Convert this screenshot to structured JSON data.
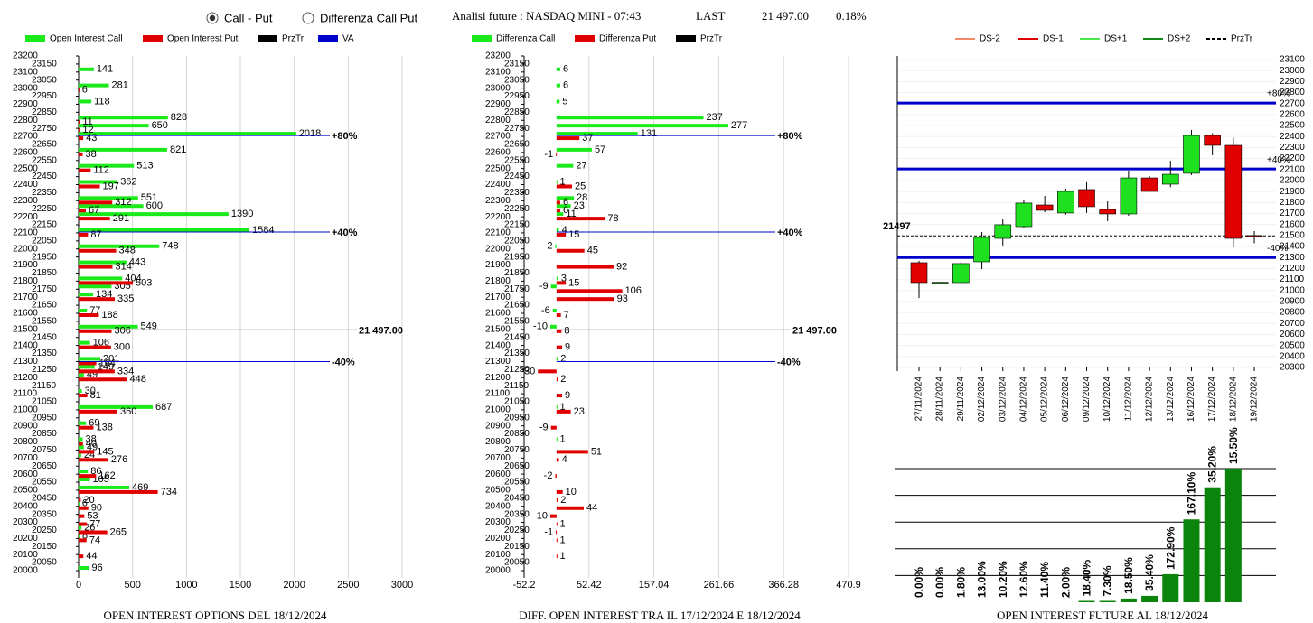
{
  "header": {
    "radio": [
      {
        "label": "Call - Put",
        "selected": true
      },
      {
        "label": "Differenza Call Put",
        "selected": false
      }
    ],
    "title": "Analisi future : NASDAQ MINI - 07:43",
    "last_label": "LAST",
    "last": "21 497.00",
    "change": "0.18%"
  },
  "chart_data": [
    {
      "type": "hbar",
      "title": "OPEN INTEREST OPTIONS DEL 18/12/2024",
      "strikes": [
        23100,
        23000,
        22900,
        22800,
        22750,
        22700,
        22600,
        22500,
        22400,
        22300,
        22250,
        22200,
        22100,
        22000,
        21900,
        21800,
        21750,
        21700,
        21600,
        21500,
        21400,
        21300,
        21250,
        21200,
        21100,
        21000,
        20900,
        20800,
        20750,
        20700,
        20600,
        20550,
        20500,
        20450,
        20400,
        20350,
        20300,
        20250,
        20200,
        20100,
        20000
      ],
      "series": [
        {
          "name": "Open Interest Call",
          "color": "#1aea1a",
          "values": [
            141,
            281,
            118,
            828,
            650,
            2018,
            821,
            513,
            362,
            551,
            600,
            1390,
            1584,
            748,
            443,
            404,
            305,
            134,
            77,
            549,
            106,
            201,
            149,
            49,
            30,
            687,
            69,
            38,
            49,
            24,
            86,
            105,
            469,
            null,
            6,
            null,
            null,
            26,
            8,
            null,
            96
          ]
        },
        {
          "name": "Open Interest Put",
          "color": "#e00000",
          "values": [
            null,
            6,
            null,
            11,
            12,
            43,
            38,
            112,
            197,
            312,
            67,
            291,
            87,
            348,
            314,
            503,
            null,
            335,
            188,
            306,
            300,
            164,
            334,
            448,
            81,
            360,
            138,
            40,
            145,
            276,
            162,
            null,
            734,
            20,
            90,
            53,
            77,
            265,
            74,
            44,
            null
          ]
        }
      ],
      "lines": [
        {
          "name": "PrzTr",
          "color": "#000000",
          "marks": [
            {
              "value": 21497,
              "label": "21 497.00"
            }
          ]
        },
        {
          "name": "VA",
          "color": "#0000cc",
          "marks": [
            {
              "value": 22705,
              "label": "+80%"
            },
            {
              "value": 22105,
              "label": "+40%"
            },
            {
              "value": 21300,
              "label": "-40%"
            }
          ]
        }
      ],
      "xlim": [
        0,
        3000
      ],
      "xticks": [
        0,
        500,
        1000,
        1500,
        2000,
        2500,
        3000
      ],
      "ylim": [
        20000,
        23200
      ],
      "yticks": [
        20000,
        20050,
        20100,
        20150,
        20200,
        20250,
        20300,
        20350,
        20400,
        20450,
        20500,
        20550,
        20600,
        20650,
        20700,
        20750,
        20800,
        20850,
        20900,
        20950,
        21000,
        21050,
        21100,
        21150,
        21200,
        21250,
        21300,
        21350,
        21400,
        21450,
        21500,
        21550,
        21600,
        21650,
        21700,
        21750,
        21800,
        21850,
        21900,
        21950,
        22000,
        22050,
        22100,
        22150,
        22200,
        22250,
        22300,
        22350,
        22400,
        22450,
        22500,
        22550,
        22600,
        22650,
        22700,
        22750,
        22800,
        22850,
        22900,
        22950,
        23000,
        23050,
        23100,
        23150,
        23200
      ],
      "grid": true
    },
    {
      "type": "hbar",
      "title": "DIFF. OPEN INTEREST TRA IL 17/12/2024 E 18/12/2024",
      "strikes": [
        23100,
        23000,
        22900,
        22800,
        22750,
        22700,
        22600,
        22500,
        22400,
        22300,
        22250,
        22200,
        22100,
        22000,
        21900,
        21800,
        21750,
        21700,
        21600,
        21500,
        21400,
        21300,
        21250,
        21200,
        21100,
        21000,
        20900,
        20800,
        20750,
        20700,
        20600,
        20500,
        20450,
        20400,
        20350,
        20300,
        20250,
        20200,
        20100
      ],
      "series": [
        {
          "name": "Differenza Call",
          "color": "#1aea1a",
          "values": [
            6,
            6,
            5,
            237,
            277,
            131,
            57,
            27,
            1,
            28,
            23,
            11,
            4,
            -2,
            null,
            3,
            -9,
            null,
            -6,
            -10,
            null,
            2,
            null,
            null,
            null,
            1,
            null,
            1,
            null,
            null,
            null,
            null,
            null,
            null,
            null,
            null,
            null,
            null,
            null
          ]
        },
        {
          "name": "Differenza Put",
          "color": "#e00000",
          "values": [
            null,
            null,
            null,
            null,
            null,
            37,
            -1,
            null,
            25,
            6,
            6,
            78,
            15,
            45,
            92,
            15,
            106,
            93,
            7,
            8,
            9,
            null,
            -30,
            2,
            9,
            23,
            -9,
            null,
            51,
            4,
            -2,
            10,
            2,
            44,
            -10,
            1,
            -1,
            1,
            1
          ]
        }
      ],
      "lines": [
        {
          "name": "PrzTr",
          "color": "#000000",
          "marks": [
            {
              "value": 21497,
              "label": "21 497.00"
            }
          ]
        },
        {
          "color": "#0000cc",
          "marks": [
            {
              "value": 22705,
              "label": "+80%"
            },
            {
              "value": 22105,
              "label": "+40%"
            },
            {
              "value": 21300,
              "label": "-40%"
            }
          ]
        }
      ],
      "xlim": [
        -52.2,
        470.9
      ],
      "xticks": [
        -52.2,
        52.42,
        157.04,
        261.66,
        366.28,
        470.9
      ],
      "ylim": [
        20000,
        23200
      ],
      "yticks": [
        20000,
        20050,
        20100,
        20150,
        20200,
        20250,
        20300,
        20350,
        20400,
        20450,
        20500,
        20550,
        20600,
        20650,
        20700,
        20750,
        20800,
        20850,
        20900,
        20950,
        21000,
        21050,
        21100,
        21150,
        21200,
        21250,
        21300,
        21350,
        21400,
        21450,
        21500,
        21550,
        21600,
        21650,
        21700,
        21750,
        21800,
        21850,
        21900,
        21950,
        22000,
        22050,
        22100,
        22150,
        22200,
        22250,
        22300,
        22350,
        22400,
        22450,
        22500,
        22550,
        22600,
        22650,
        22700,
        22750,
        22800,
        22850,
        22900,
        22950,
        23000,
        23050,
        23100,
        23150,
        23200
      ],
      "grid": true
    },
    {
      "type": "candlestick",
      "categories": [
        "27/11/2024",
        "28/11/2024",
        "29/11/2024",
        "02/12/2024",
        "03/12/2024",
        "04/12/2024",
        "05/12/2024",
        "06/12/2024",
        "09/12/2024",
        "10/12/2024",
        "11/12/2024",
        "12/12/2024",
        "13/12/2024",
        "16/12/2024",
        "17/12/2024",
        "18/12/2024",
        "19/12/2024"
      ],
      "open": [
        21253,
        21072,
        21072,
        21261,
        21474,
        21581,
        21778,
        21705,
        21918,
        21737,
        21696,
        22024,
        21967,
        22066,
        22410,
        22320,
        21500
      ],
      "high": [
        21270,
        21072,
        21261,
        21532,
        21655,
        21820,
        21860,
        21925,
        21985,
        21810,
        22090,
        22040,
        22180,
        22460,
        22430,
        22390,
        21540
      ],
      "low": [
        20932,
        21072,
        21060,
        21195,
        21409,
        21565,
        21712,
        21690,
        21705,
        21630,
        21680,
        21900,
        21940,
        22050,
        22230,
        21392,
        21430
      ],
      "close": [
        21072,
        21075,
        21245,
        21483,
        21598,
        21795,
        21729,
        21901,
        21762,
        21696,
        22024,
        21901,
        22057,
        22410,
        22320,
        21474,
        21497
      ],
      "up_color": "#1ee01e",
      "down_color": "#e00000",
      "legend": [
        {
          "name": "DS-2",
          "color": "#f08a6a",
          "dash": false
        },
        {
          "name": "DS-1",
          "color": "#e00000",
          "dash": false
        },
        {
          "name": "DS+1",
          "color": "#4be84b",
          "dash": false
        },
        {
          "name": "DS+2",
          "color": "#138a13",
          "dash": false
        },
        {
          "name": "PrzTr",
          "color": "#000000",
          "dash": true
        }
      ],
      "lines": [
        {
          "color": "#0000cc",
          "dash": false,
          "marks": [
            {
              "value": 22705,
              "label": "+80%"
            },
            {
              "value": 22105,
              "label": "+40%"
            },
            {
              "value": 21300,
              "label": "-40%"
            }
          ]
        },
        {
          "color": "#000000",
          "dash": true,
          "marks": [
            {
              "value": 21497,
              "label": "21497"
            }
          ]
        }
      ],
      "ylim": [
        20300,
        23100
      ],
      "yticks": [
        20300,
        20400,
        20500,
        20600,
        20700,
        20800,
        20900,
        21000,
        21100,
        21200,
        21300,
        21400,
        21500,
        21600,
        21700,
        21800,
        21900,
        22000,
        22100,
        22200,
        22300,
        22400,
        22500,
        22600,
        22700,
        22800,
        22900,
        23000,
        23100
      ],
      "grid": true
    },
    {
      "type": "bar",
      "title": "OPEN INTEREST FUTURE AL 18/12/2024",
      "values": [
        0,
        0,
        0,
        0,
        0,
        0,
        0,
        0,
        0.05,
        0.05,
        0.14,
        0.24,
        1.05,
        3.1,
        4.3,
        5
      ],
      "annotations": [
        "0.00%",
        "0.00%",
        "1.80%",
        "13.00%",
        "10.20%",
        "12.60%",
        "11.40%",
        "2.00%",
        "18.40%",
        "7.30%",
        "18.50%",
        "35.40%",
        "172.90%",
        "167.10%",
        "35.20%",
        "15.50%"
      ],
      "color": "#0a840a",
      "ylim": [
        0,
        5
      ],
      "yticks": [
        1,
        2,
        3,
        4,
        5
      ],
      "grid": true
    }
  ]
}
